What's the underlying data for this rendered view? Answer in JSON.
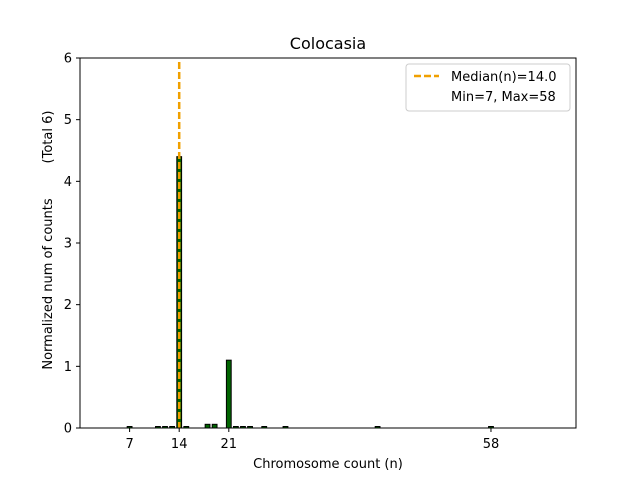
{
  "chart_data": {
    "type": "bar",
    "title": "Colocasia",
    "xlabel": "Chromosome count (n)",
    "ylabel": "Normalized num of counts",
    "ylabel_note": "(Total 6)",
    "xlim": [
      0,
      70
    ],
    "ylim": [
      0,
      6
    ],
    "yticks": [
      0,
      1,
      2,
      3,
      4,
      5,
      6
    ],
    "xticks": [
      7,
      14,
      21,
      58
    ],
    "grid": false,
    "bar_color": "#006400",
    "bar_edge_color": "#000000",
    "median_color": "#f0a000",
    "legend_position": "upper right",
    "legend": [
      {
        "label": "Median(n)=14.0",
        "style": "dashed-line"
      },
      {
        "label": "Min=7, Max=58",
        "style": "none"
      }
    ],
    "median": 14.0,
    "bars": [
      {
        "x": 7,
        "y": 0.02
      },
      {
        "x": 11,
        "y": 0.02
      },
      {
        "x": 12,
        "y": 0.02
      },
      {
        "x": 13,
        "y": 0.02
      },
      {
        "x": 14,
        "y": 4.4
      },
      {
        "x": 15,
        "y": 0.02
      },
      {
        "x": 18,
        "y": 0.06
      },
      {
        "x": 19,
        "y": 0.06
      },
      {
        "x": 21,
        "y": 1.1
      },
      {
        "x": 22,
        "y": 0.02
      },
      {
        "x": 23,
        "y": 0.02
      },
      {
        "x": 24,
        "y": 0.02
      },
      {
        "x": 26,
        "y": 0.02
      },
      {
        "x": 29,
        "y": 0.02
      },
      {
        "x": 42,
        "y": 0.02
      },
      {
        "x": 58,
        "y": 0.02
      }
    ]
  }
}
